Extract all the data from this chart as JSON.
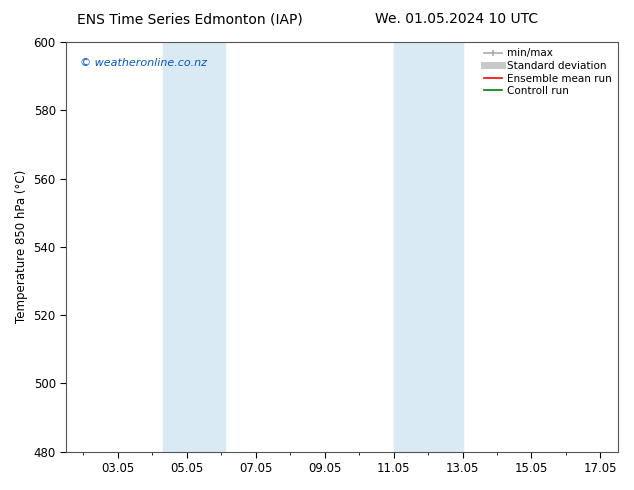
{
  "title_left": "ENS Time Series Edmonton (IAP)",
  "title_right": "We. 01.05.2024 10 UTC",
  "ylabel": "Temperature 850 hPa (°C)",
  "ylim": [
    480,
    600
  ],
  "yticks": [
    480,
    500,
    520,
    540,
    560,
    580,
    600
  ],
  "xlim": [
    1.5,
    17.5
  ],
  "xtick_labels": [
    "03.05",
    "05.05",
    "07.05",
    "09.05",
    "11.05",
    "13.05",
    "15.05",
    "17.05"
  ],
  "xtick_positions": [
    3,
    5,
    7,
    9,
    11,
    13,
    15,
    17
  ],
  "shaded_bands": [
    {
      "x_start": 4.3,
      "x_end": 6.1,
      "color": "#daeaf5"
    },
    {
      "x_start": 11.0,
      "x_end": 13.0,
      "color": "#daeaf5"
    }
  ],
  "legend_entries": [
    {
      "label": "min/max",
      "color": "#aaaaaa",
      "lw": 1.2
    },
    {
      "label": "Standard deviation",
      "color": "#c8c8c8",
      "lw": 5
    },
    {
      "label": "Ensemble mean run",
      "color": "#ff0000",
      "lw": 1.2
    },
    {
      "label": "Controll run",
      "color": "#008000",
      "lw": 1.2
    }
  ],
  "watermark": "© weatheronline.co.nz",
  "watermark_color": "#0055cc",
  "background_color": "#ffffff",
  "plot_bg_color": "#ffffff",
  "title_fontsize": 10,
  "tick_label_fontsize": 8.5,
  "ylabel_fontsize": 8.5,
  "legend_fontsize": 7.5,
  "watermark_fontsize": 8
}
